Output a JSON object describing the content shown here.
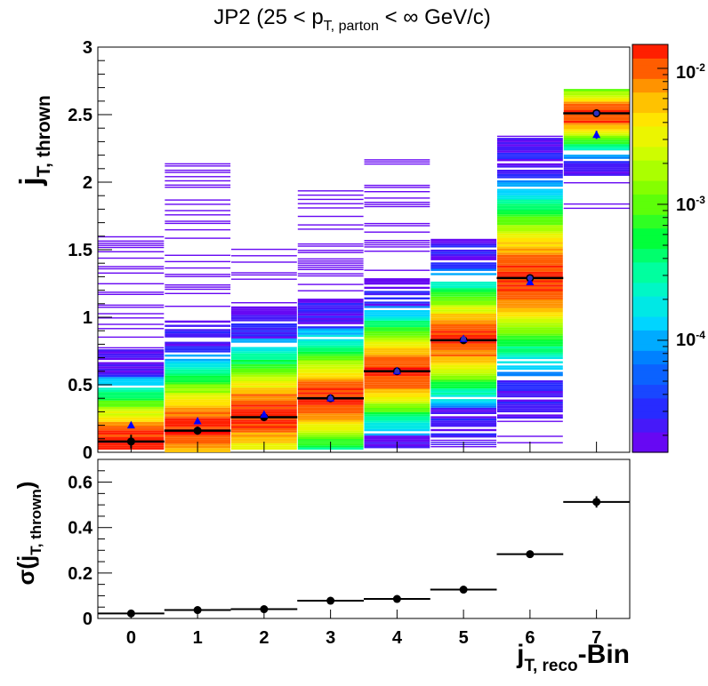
{
  "chart_data": [
    {
      "type": "heatmap",
      "title_parts": {
        "prefix": "JP2 (25 < p",
        "sub": "T, parton",
        "suffix": " < ∞ GeV/c)"
      },
      "ylabel_parts": {
        "main": "j",
        "sub": "T, thrown"
      },
      "xlim": [
        -0.5,
        7.5
      ],
      "ylim": [
        0,
        3
      ],
      "y_ticks": [
        0,
        0.5,
        1,
        1.5,
        2,
        2.5,
        3
      ],
      "y_tick_labels": [
        "0",
        "0.5",
        "1",
        "1.5",
        "2",
        "2.5",
        "3"
      ],
      "colorbar": {
        "scale": "log",
        "range": [
          1.5e-05,
          0.015
        ],
        "ticks": [
          0.0001,
          0.001,
          0.01
        ],
        "tick_labels": [
          {
            "base": "10",
            "exp": "-4"
          },
          {
            "base": "10",
            "exp": "-3"
          },
          {
            "base": "10",
            "exp": "-2"
          }
        ]
      },
      "bins": [
        {
          "x": 0,
          "y_low": 0.02,
          "y_high": 1.6,
          "peak_y": 0.08,
          "spread": 0.3
        },
        {
          "x": 1,
          "y_low": 0.0,
          "y_high": 2.14,
          "peak_y": 0.17,
          "spread": 0.35
        },
        {
          "x": 2,
          "y_low": 0.02,
          "y_high": 1.65,
          "peak_y": 0.28,
          "spread": 0.35
        },
        {
          "x": 3,
          "y_low": 0.02,
          "y_high": 1.94,
          "peak_y": 0.4,
          "spread": 0.32
        },
        {
          "x": 4,
          "y_low": 0.03,
          "y_high": 2.17,
          "peak_y": 0.6,
          "spread": 0.3
        },
        {
          "x": 5,
          "y_low": 0.03,
          "y_high": 1.58,
          "peak_y": 0.84,
          "spread": 0.32
        },
        {
          "x": 6,
          "y_low": 0.06,
          "y_high": 2.36,
          "peak_y": 1.29,
          "spread": 0.45
        },
        {
          "x": 7,
          "y_low": 1.78,
          "y_high": 2.69,
          "peak_y": 2.5,
          "spread": 0.2
        }
      ],
      "series": [
        {
          "marker": "circle",
          "color": "#000000",
          "x": [
            0,
            1,
            2,
            3,
            4,
            5,
            6,
            7
          ],
          "y": [
            0.08,
            0.16,
            0.26,
            0.4,
            0.6,
            0.83,
            1.29,
            2.51
          ],
          "yerr": [
            0.05,
            0.03,
            0.03,
            0.02,
            0.02,
            0.02,
            0.02,
            0.03
          ]
        },
        {
          "marker": "triangle",
          "color": "#0000ff",
          "x": [
            0,
            1,
            2,
            3,
            4,
            5,
            6,
            7
          ],
          "y": [
            0.2,
            0.23,
            0.28,
            0.4,
            0.6,
            0.84,
            1.26,
            2.35
          ],
          "yerr": [
            0,
            0,
            0,
            0,
            0,
            0,
            0.02,
            0.03
          ]
        },
        {
          "marker": "circle-small",
          "color": "#3030c0",
          "x": [
            3,
            4,
            5,
            6,
            7
          ],
          "y": [
            0.4,
            0.6,
            0.84,
            1.29,
            2.51
          ],
          "yerr": [
            0,
            0,
            0,
            0,
            0
          ]
        }
      ]
    },
    {
      "type": "scatter",
      "ylabel_parts": {
        "main": "σ(j",
        "sub": "T, thrown",
        "suffix": ")"
      },
      "xlabel_parts": {
        "main": "j",
        "sub": "T, reco",
        "suffix": "-Bin"
      },
      "xlim": [
        -0.5,
        7.5
      ],
      "ylim": [
        0,
        0.7
      ],
      "x_ticks": [
        0,
        1,
        2,
        3,
        4,
        5,
        6,
        7
      ],
      "x_tick_labels": [
        "0",
        "1",
        "2",
        "3",
        "4",
        "5",
        "6",
        "7"
      ],
      "y_ticks": [
        0,
        0.2,
        0.4,
        0.6
      ],
      "y_tick_labels": [
        "0",
        "0.2",
        "0.4",
        "0.6"
      ],
      "series": [
        {
          "x": [
            0,
            1,
            2,
            3,
            4,
            5,
            6,
            7
          ],
          "y": [
            0.022,
            0.037,
            0.041,
            0.078,
            0.086,
            0.127,
            0.283,
            0.513
          ],
          "yerr": [
            0.004,
            0.005,
            0.005,
            0.005,
            0.005,
            0.006,
            0.007,
            0.025
          ],
          "xerr": 0.5
        }
      ]
    }
  ]
}
